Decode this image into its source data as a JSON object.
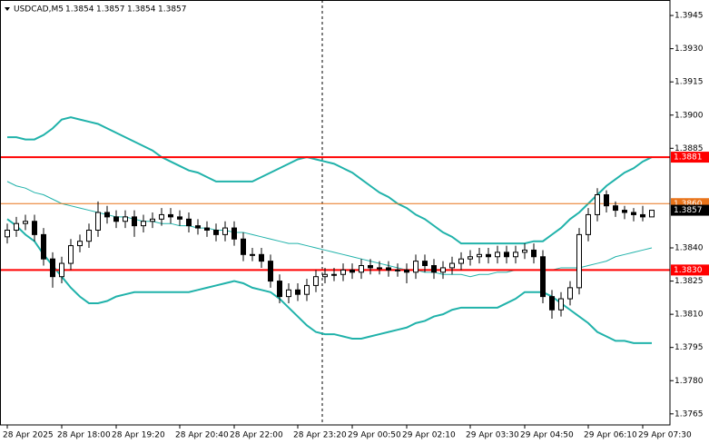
{
  "chart_data": {
    "type": "candlestick",
    "title": "USDCAD,M5",
    "categories": [
      "28 Apr 2025",
      null,
      null,
      null,
      null,
      null,
      "28 Apr 18:00",
      null,
      null,
      null,
      null,
      null,
      "28 Apr 19:20",
      null,
      null,
      null,
      null,
      null,
      null,
      "28 Apr 20:40",
      null,
      null,
      null,
      null,
      null,
      "28 Apr 22:00",
      null,
      null,
      null,
      null,
      null,
      null,
      "28 Apr 23:20",
      null,
      null,
      null,
      null,
      null,
      "29 Apr 00:50",
      null,
      null,
      null,
      null,
      null,
      "29 Apr 02:10",
      null,
      null,
      null,
      null,
      null,
      null,
      "29 Apr 03:30",
      null,
      null,
      null,
      null,
      null,
      "29 Apr 04:50",
      null,
      null,
      null,
      null,
      null,
      null,
      "29 Apr 06:10",
      null,
      null,
      null,
      null,
      null,
      "29 Apr 07:30",
      null
    ],
    "open": [
      1.3845,
      1.3848,
      1.3851,
      1.3852,
      1.3846,
      1.3835,
      1.3827,
      1.3833,
      1.3841,
      1.3843,
      1.3848,
      1.3856,
      1.3854,
      1.3852,
      1.3854,
      1.385,
      1.3852,
      1.3853,
      1.3855,
      1.3854,
      1.3853,
      1.385,
      1.3849,
      1.3848,
      1.3846,
      1.3849,
      1.3844,
      1.3837,
      1.3837,
      1.3834,
      1.3825,
      1.3818,
      1.3821,
      1.3819,
      1.3823,
      1.3827,
      1.3828,
      1.3828,
      1.383,
      1.3829,
      1.3832,
      1.3831,
      1.3831,
      1.383,
      1.383,
      1.3829,
      1.3834,
      1.3832,
      1.3829,
      1.3831,
      1.3833,
      1.3835,
      1.3836,
      1.3837,
      1.3836,
      1.3838,
      1.3836,
      1.3838,
      1.3839,
      1.3836,
      1.3818,
      1.3812,
      1.3817,
      1.3822,
      1.3846,
      1.3855,
      1.3864,
      1.3859,
      1.3857,
      1.3856,
      1.3855,
      1.3854
    ],
    "high": [
      1.3851,
      1.3854,
      1.3855,
      1.3855,
      1.3849,
      1.3838,
      1.3836,
      1.3844,
      1.3846,
      1.3851,
      1.3861,
      1.3859,
      1.3857,
      1.3857,
      1.3857,
      1.3855,
      1.3856,
      1.3858,
      1.3858,
      1.3857,
      1.3856,
      1.3853,
      1.3852,
      1.3851,
      1.3852,
      1.3852,
      1.3847,
      1.384,
      1.384,
      1.3837,
      1.3828,
      1.3824,
      1.3824,
      1.3826,
      1.383,
      1.3831,
      1.3831,
      1.3833,
      1.3833,
      1.3835,
      1.3835,
      1.3834,
      1.3834,
      1.3833,
      1.3833,
      1.3837,
      1.3837,
      1.3835,
      1.3834,
      1.3836,
      1.3838,
      1.3839,
      1.384,
      1.384,
      1.3841,
      1.3841,
      1.3841,
      1.3842,
      1.3842,
      1.3839,
      1.3821,
      1.382,
      1.3825,
      1.3849,
      1.3858,
      1.3867,
      1.3866,
      1.3861,
      1.3859,
      1.3858,
      1.3859,
      1.3857
    ],
    "low": [
      1.3842,
      1.3845,
      1.3848,
      1.3843,
      1.3832,
      1.3822,
      1.3824,
      1.383,
      1.3838,
      1.384,
      1.3845,
      1.3851,
      1.3849,
      1.3849,
      1.3845,
      1.3847,
      1.3849,
      1.385,
      1.3851,
      1.385,
      1.3847,
      1.3846,
      1.3845,
      1.3843,
      1.3843,
      1.3841,
      1.3834,
      1.3834,
      1.3831,
      1.3822,
      1.3815,
      1.3815,
      1.3816,
      1.3816,
      1.382,
      1.3824,
      1.3825,
      1.3825,
      1.3826,
      1.3826,
      1.3828,
      1.3828,
      1.3827,
      1.3827,
      1.3824,
      1.3826,
      1.3829,
      1.3826,
      1.3826,
      1.3828,
      1.383,
      1.3832,
      1.3833,
      1.3833,
      1.3833,
      1.3833,
      1.3833,
      1.3835,
      1.3833,
      1.3815,
      1.3808,
      1.3809,
      1.3814,
      1.3819,
      1.3843,
      1.3852,
      1.3856,
      1.3854,
      1.3853,
      1.3852,
      1.3852,
      1.3854
    ],
    "close": [
      1.3848,
      1.3851,
      1.3852,
      1.3846,
      1.3835,
      1.3827,
      1.3833,
      1.3841,
      1.3843,
      1.3848,
      1.3856,
      1.3854,
      1.3852,
      1.3854,
      1.385,
      1.3852,
      1.3853,
      1.3855,
      1.3854,
      1.3853,
      1.385,
      1.3849,
      1.3848,
      1.3846,
      1.3849,
      1.3844,
      1.3837,
      1.3837,
      1.3834,
      1.3825,
      1.3818,
      1.3821,
      1.3819,
      1.3823,
      1.3827,
      1.3828,
      1.3828,
      1.383,
      1.3829,
      1.3832,
      1.3831,
      1.3831,
      1.383,
      1.383,
      1.3829,
      1.3834,
      1.3832,
      1.3829,
      1.3831,
      1.3833,
      1.3835,
      1.3836,
      1.3837,
      1.3836,
      1.3838,
      1.3836,
      1.3838,
      1.3839,
      1.3836,
      1.3818,
      1.3812,
      1.3817,
      1.3822,
      1.3846,
      1.3855,
      1.3864,
      1.3859,
      1.3857,
      1.3856,
      1.3855,
      1.3854,
      1.3857
    ],
    "bands": {
      "color": "#20b2aa",
      "upper": [
        1.389,
        1.389,
        1.3889,
        1.3889,
        1.3891,
        1.3894,
        1.3898,
        1.3899,
        1.3898,
        1.3897,
        1.3896,
        1.3894,
        1.3892,
        1.389,
        1.3888,
        1.3886,
        1.3884,
        1.3881,
        1.3879,
        1.3877,
        1.3875,
        1.3874,
        1.3872,
        1.387,
        1.387,
        1.387,
        1.387,
        1.387,
        1.3872,
        1.3874,
        1.3876,
        1.3878,
        1.388,
        1.3881,
        1.388,
        1.3879,
        1.3878,
        1.3876,
        1.3874,
        1.3871,
        1.3868,
        1.3865,
        1.3863,
        1.386,
        1.3858,
        1.3855,
        1.3853,
        1.385,
        1.3847,
        1.3845,
        1.3842,
        1.3842,
        1.3842,
        1.3842,
        1.3842,
        1.3842,
        1.3842,
        1.3842,
        1.3843,
        1.3843,
        1.3846,
        1.3849,
        1.3853,
        1.3856,
        1.386,
        1.3864,
        1.3868,
        1.3871,
        1.3874,
        1.3876,
        1.3879,
        1.3881
      ],
      "middle": [
        1.387,
        1.3868,
        1.3867,
        1.3865,
        1.3864,
        1.3862,
        1.386,
        1.3859,
        1.3858,
        1.3857,
        1.3856,
        1.3855,
        1.3854,
        1.3854,
        1.3853,
        1.3852,
        1.3852,
        1.3851,
        1.3851,
        1.385,
        1.385,
        1.3849,
        1.3849,
        1.3848,
        1.3848,
        1.3847,
        1.3847,
        1.3846,
        1.3845,
        1.3844,
        1.3843,
        1.3842,
        1.3842,
        1.3841,
        1.384,
        1.3839,
        1.3838,
        1.3837,
        1.3836,
        1.3835,
        1.3834,
        1.3833,
        1.3832,
        1.3831,
        1.383,
        1.383,
        1.3829,
        1.3829,
        1.3828,
        1.3828,
        1.3828,
        1.3827,
        1.3828,
        1.3828,
        1.3829,
        1.3829,
        1.383,
        1.383,
        1.383,
        1.383,
        1.383,
        1.3831,
        1.3831,
        1.3831,
        1.3832,
        1.3833,
        1.3834,
        1.3836,
        1.3837,
        1.3838,
        1.3839,
        1.384
      ],
      "lower": [
        1.3853,
        1.385,
        1.3846,
        1.3843,
        1.3837,
        1.3832,
        1.3827,
        1.3822,
        1.3818,
        1.3815,
        1.3815,
        1.3816,
        1.3818,
        1.3819,
        1.382,
        1.382,
        1.382,
        1.382,
        1.382,
        1.382,
        1.382,
        1.3821,
        1.3822,
        1.3823,
        1.3824,
        1.3825,
        1.3824,
        1.3822,
        1.3821,
        1.382,
        1.3817,
        1.3813,
        1.3809,
        1.3805,
        1.3802,
        1.3801,
        1.3801,
        1.38,
        1.3799,
        1.3799,
        1.38,
        1.3801,
        1.3802,
        1.3803,
        1.3804,
        1.3806,
        1.3807,
        1.3809,
        1.381,
        1.3812,
        1.3813,
        1.3813,
        1.3813,
        1.3813,
        1.3813,
        1.3815,
        1.3817,
        1.382,
        1.382,
        1.382,
        1.3818,
        1.3815,
        1.3812,
        1.3809,
        1.3806,
        1.3802,
        1.38,
        1.3798,
        1.3798,
        1.3797,
        1.3797,
        1.3797
      ]
    },
    "hlines": [
      {
        "value": 1.3881,
        "color": "#ff0000"
      },
      {
        "value": 1.383,
        "label": "1.3830",
        "color": "#ff0000"
      },
      {
        "value": 1.386,
        "label": "1.3860",
        "color": "#e8731a"
      }
    ],
    "ylim": [
      1.376,
      1.3952
    ],
    "yticks": [
      1.3945,
      {
        "value": 1.393,
        "label": "1.3930"
      },
      1.3915,
      {
        "value": 1.39,
        "label": "1.3900"
      },
      1.3885,
      {
        "value": 1.384,
        "label": "1.3840"
      },
      1.3825,
      {
        "value": 1.381,
        "label": "1.3810"
      },
      1.3795,
      {
        "value": 1.378,
        "label": "1.3780"
      },
      1.3765
    ]
  }
}
